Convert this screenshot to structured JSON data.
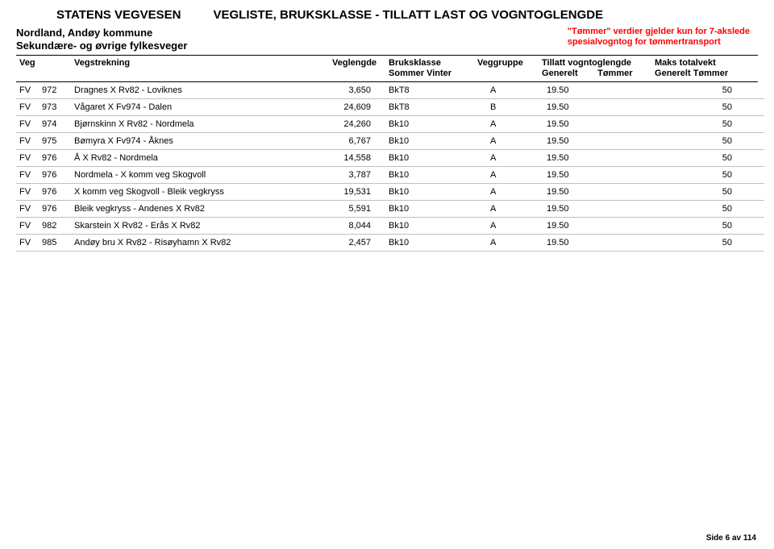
{
  "header": {
    "org": "STATENS VEGVESEN",
    "title": "VEGLISTE, BRUKSKLASSE - TILLATT LAST OG VOGNTOGLENGDE",
    "region": "Nordland, Andøy kommune",
    "subhead": "Sekundære- og øvrige fylkesveger",
    "note_l1": "\"Tømmer\" verdier gjelder kun for 7-akslede",
    "note_l2": "spesialvogntog for tømmertransport"
  },
  "columns": {
    "veg": "Veg",
    "strekning": "Vegstrekning",
    "lengde": "Veglengde",
    "bruks_l1": "Bruksklasse",
    "bruks_l2": "Sommer   Vinter",
    "gruppe": "Veggruppe",
    "tvg_l1": "Tillatt vogntoglengde",
    "tvg_l2": "Generelt        Tømmer",
    "maks_l1": "Maks totalvekt",
    "maks_l2": "Generelt Tømmer"
  },
  "rows": [
    {
      "t": "FV",
      "n": "972",
      "s": "Dragnes X Rv82 - Loviknes",
      "l": "3,650",
      "b": "BkT8",
      "g": "A",
      "tv": "19.50",
      "m": "50"
    },
    {
      "t": "FV",
      "n": "973",
      "s": "Vågaret X Fv974 - Dalen",
      "l": "24,609",
      "b": "BkT8",
      "g": "B",
      "tv": "19.50",
      "m": "50"
    },
    {
      "t": "FV",
      "n": "974",
      "s": "Bjørnskinn X Rv82 - Nordmela",
      "l": "24,260",
      "b": "Bk10",
      "g": "A",
      "tv": "19.50",
      "m": "50"
    },
    {
      "t": "FV",
      "n": "975",
      "s": "Bømyra X Fv974 - Åknes",
      "l": "6,767",
      "b": "Bk10",
      "g": "A",
      "tv": "19.50",
      "m": "50"
    },
    {
      "t": "FV",
      "n": "976",
      "s": "Å X Rv82 - Nordmela",
      "l": "14,558",
      "b": "Bk10",
      "g": "A",
      "tv": "19.50",
      "m": "50"
    },
    {
      "t": "FV",
      "n": "976",
      "s": "Nordmela - X komm veg Skogvoll",
      "l": "3,787",
      "b": "Bk10",
      "g": "A",
      "tv": "19.50",
      "m": "50"
    },
    {
      "t": "FV",
      "n": "976",
      "s": "X komm veg Skogvoll - Bleik vegkryss",
      "l": "19,531",
      "b": "Bk10",
      "g": "A",
      "tv": "19.50",
      "m": "50"
    },
    {
      "t": "FV",
      "n": "976",
      "s": "Bleik vegkryss - Andenes X Rv82",
      "l": "5,591",
      "b": "Bk10",
      "g": "A",
      "tv": "19.50",
      "m": "50"
    },
    {
      "t": "FV",
      "n": "982",
      "s": "Skarstein X Rv82 - Erås X Rv82",
      "l": "8,044",
      "b": "Bk10",
      "g": "A",
      "tv": "19.50",
      "m": "50"
    },
    {
      "t": "FV",
      "n": "985",
      "s": "Andøy bru X Rv82 - Risøyhamn X Rv82",
      "l": "2,457",
      "b": "Bk10",
      "g": "A",
      "tv": "19.50",
      "m": "50"
    }
  ],
  "footer": {
    "page": "Side 6 av 114"
  },
  "style": {
    "note_color": "#ff0000",
    "row_border": "#c0c0c0",
    "text_color": "#000000",
    "bg_color": "#ffffff"
  }
}
